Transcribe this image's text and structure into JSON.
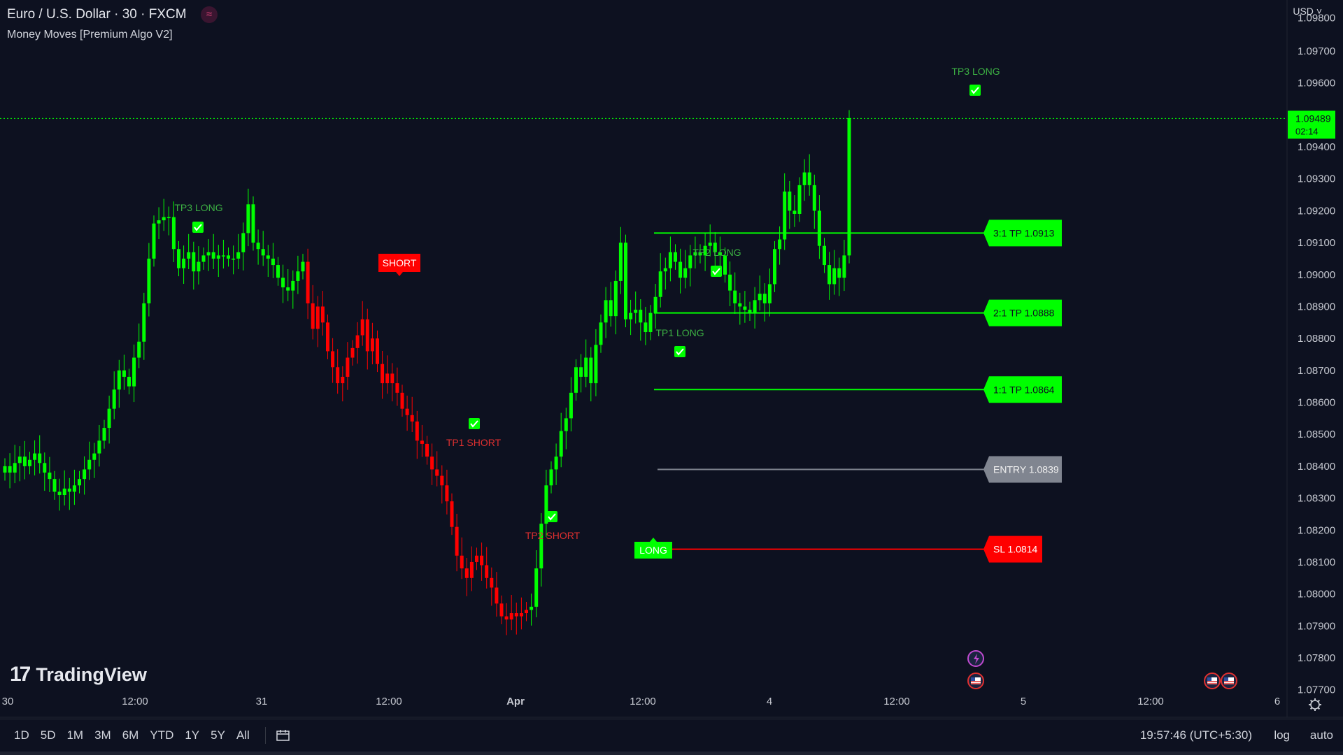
{
  "header": {
    "title": "Euro / U.S. Dollar · 30 · FXCM",
    "indicator": "Money Moves [Premium Algo V2]",
    "currency": "USD"
  },
  "brand": {
    "logo_text": "TradingView"
  },
  "colors": {
    "up": "#00ff00",
    "down": "#ff0000",
    "entry": "#808590",
    "background": "#0d1120"
  },
  "timeframes": [
    "1D",
    "5D",
    "1M",
    "3M",
    "6M",
    "YTD",
    "1Y",
    "5Y",
    "All"
  ],
  "status": {
    "clock": "19:57:46 (UTC+5:30)",
    "log": "log",
    "auto": "auto"
  },
  "chart_data": {
    "type": "candlestick",
    "y_axis": {
      "min": 1.077,
      "max": 1.098,
      "ticks": [
        "1.07700",
        "1.07800",
        "1.07900",
        "1.08000",
        "1.08100",
        "1.08200",
        "1.08300",
        "1.08400",
        "1.08500",
        "1.08600",
        "1.08700",
        "1.08800",
        "1.08900",
        "1.09000",
        "1.09100",
        "1.09200",
        "1.09300",
        "1.09400",
        "1.09600",
        "1.09700"
      ]
    },
    "x_axis": {
      "labels": [
        "30",
        "12:00",
        "31",
        "12:00",
        "Apr",
        "12:00",
        "4",
        "12:00",
        "5",
        "12:00",
        "6"
      ]
    },
    "last_price": {
      "value": "1.09489",
      "countdown": "02:14"
    },
    "levels": [
      {
        "label": "3:1 TP 1.0913",
        "price": 1.0913,
        "color": "#00ff00"
      },
      {
        "label": "2:1 TP 1.0888",
        "price": 1.0888,
        "color": "#00ff00"
      },
      {
        "label": "1:1 TP 1.0864",
        "price": 1.0864,
        "color": "#00ff00"
      },
      {
        "label": "ENTRY 1.0839",
        "price": 1.0839,
        "color": "#808590"
      },
      {
        "label": "SL 1.0814",
        "price": 1.0814,
        "color": "#ff0000"
      }
    ],
    "signals": [
      {
        "label": "TP3 LONG",
        "kind": "tp-long"
      },
      {
        "label": "SHORT",
        "kind": "short-box"
      },
      {
        "label": "TP1 SHORT",
        "kind": "tp-short"
      },
      {
        "label": "TP2 SHORT",
        "kind": "tp-short"
      },
      {
        "label": "LONG",
        "kind": "long-box"
      },
      {
        "label": "TP1 LONG",
        "kind": "tp-long"
      },
      {
        "label": "TP2 LONG",
        "kind": "tp-long"
      },
      {
        "label": "TP3 LONG",
        "kind": "tp-long"
      }
    ],
    "closes": [
      1.084,
      1.0838,
      1.0841,
      1.0843,
      1.084,
      1.0842,
      1.0844,
      1.0841,
      1.0838,
      1.0836,
      1.0832,
      1.0831,
      1.0833,
      1.0832,
      1.0834,
      1.0836,
      1.0839,
      1.0842,
      1.0844,
      1.0848,
      1.0852,
      1.0858,
      1.0864,
      1.087,
      1.0868,
      1.0865,
      1.0874,
      1.0879,
      1.0891,
      1.0905,
      1.0916,
      1.0917,
      1.0918,
      1.0918,
      1.0908,
      1.0902,
      1.0905,
      1.0907,
      1.0901,
      1.0904,
      1.0906,
      1.0907,
      1.0905,
      1.0906,
      1.0906,
      1.0905,
      1.0905,
      1.0907,
      1.0913,
      1.0922,
      1.091,
      1.0908,
      1.0906,
      1.0905,
      1.0903,
      1.0899,
      1.0896,
      1.0895,
      1.0898,
      1.0901,
      1.0904,
      1.0891,
      1.0883,
      1.089,
      1.0885,
      1.0876,
      1.0871,
      1.0866,
      1.0868,
      1.0874,
      1.0877,
      1.0881,
      1.0886,
      1.0876,
      1.088,
      1.0872,
      1.0866,
      1.0869,
      1.0866,
      1.0863,
      1.0858,
      1.0856,
      1.0854,
      1.0848,
      1.0847,
      1.0843,
      1.0839,
      1.0837,
      1.0834,
      1.0829,
      1.0821,
      1.0812,
      1.0808,
      1.0805,
      1.081,
      1.0812,
      1.0809,
      1.0805,
      1.0802,
      1.0797,
      1.0793,
      1.0792,
      1.0794,
      1.0793,
      1.0794,
      1.0795,
      1.0796,
      1.0808,
      1.0822,
      1.0834,
      1.0839,
      1.0843,
      1.0851,
      1.0855,
      1.0863,
      1.0871,
      1.0868,
      1.0874,
      1.0866,
      1.0878,
      1.0885,
      1.0892,
      1.0887,
      1.0898,
      1.091,
      1.0886,
      1.0888,
      1.0889,
      1.0885,
      1.0882,
      1.0888,
      1.0893,
      1.0901,
      1.0902,
      1.0907,
      1.0904,
      1.0899,
      1.0902,
      1.0906,
      1.0907,
      1.0906,
      1.0909,
      1.091,
      1.0907,
      1.0906,
      1.09,
      1.0895,
      1.0891,
      1.089,
      1.0889,
      1.0888,
      1.0892,
      1.0894,
      1.0891,
      1.0897,
      1.0908,
      1.0911,
      1.0926,
      1.092,
      1.0919,
      1.0928,
      1.0932,
      1.0928,
      1.092,
      1.0909,
      1.0903,
      1.0897,
      1.0902,
      1.0899,
      1.0906,
      1.0949
    ]
  }
}
